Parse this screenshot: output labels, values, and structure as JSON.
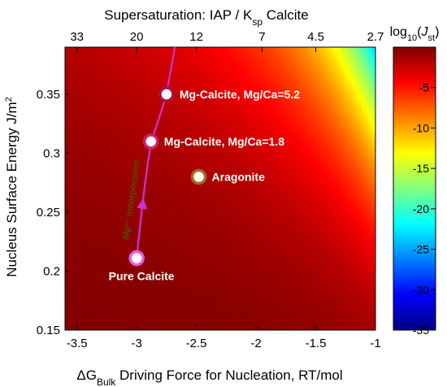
{
  "chart_data": {
    "type": "heatmap",
    "x_axis": {
      "label_main": "ΔG",
      "label_sub": "Bulk",
      "label_rest": " Driving Force for Nucleation, RT/mol",
      "range": [
        -3.6,
        -1
      ],
      "ticks": [
        -3.5,
        -3,
        -2.5,
        -2,
        -1.5,
        -1
      ],
      "tick_labels": [
        "-3.5",
        "-3",
        "-2.5",
        "-2",
        "-1.5",
        "-1"
      ]
    },
    "top_axis": {
      "label_pre": "Supersaturation: IAP / K",
      "label_sub": "sp",
      "label_post": " Calcite",
      "ticks_at_x": [
        -3.5,
        -3.0,
        -2.5,
        -1.95,
        -1.5,
        -1.0
      ],
      "tick_labels": [
        "33",
        "20",
        "12",
        "7",
        "4.5",
        "2.7"
      ]
    },
    "y_axis": {
      "label_main": "Nucleus Surface Energy J/m",
      "label_sup": "2",
      "range": [
        0.15,
        0.39
      ],
      "ticks": [
        0.15,
        0.2,
        0.25,
        0.3,
        0.35
      ],
      "tick_labels": [
        "0.15",
        "0.2",
        "0.25",
        "0.3",
        "0.35"
      ]
    },
    "colorbar": {
      "title_pre": "log",
      "title_sub": "10",
      "title_paren_open": "(",
      "title_J": "J",
      "title_J_sub": "st",
      "title_paren_close": ")",
      "range": [
        -35,
        0
      ],
      "ticks": [
        -5,
        -10,
        -15,
        -20,
        -25,
        -30,
        -35
      ],
      "tick_labels": [
        "-5",
        "-10",
        "-15",
        "-20",
        "-25",
        "-30",
        "-35"
      ],
      "colors": [
        "#000080",
        "#0000ff",
        "#0080ff",
        "#00ffff",
        "#80ff80",
        "#ffff00",
        "#ff8000",
        "#ff0000",
        "#800000"
      ]
    },
    "points": [
      {
        "name": "Pure Calcite",
        "x": -3.0,
        "y": 0.211,
        "fill": "#ffffff",
        "stroke": "#e060e0"
      },
      {
        "name": "Mg-Calcite, Mg/Ca=1.8",
        "x": -2.88,
        "y": 0.31,
        "fill": "#ffffff",
        "stroke": "#cc2266"
      },
      {
        "name": "Mg-Calcite, Mg/Ca=5.2",
        "x": -2.75,
        "y": 0.35,
        "fill": "#ffffff",
        "stroke": "#aa1144"
      },
      {
        "name": "Aragonite",
        "x": -2.48,
        "y": 0.28,
        "fill": "#ffffff",
        "stroke": "#a07020"
      }
    ],
    "curve": {
      "label": "Mg²⁺ Incorporation",
      "color": "#cc33cc",
      "points": [
        [
          -3.0,
          0.211
        ],
        [
          -2.97,
          0.24
        ],
        [
          -2.93,
          0.275
        ],
        [
          -2.88,
          0.31
        ],
        [
          -2.81,
          0.33
        ],
        [
          -2.75,
          0.35
        ],
        [
          -2.68,
          0.39
        ]
      ]
    }
  }
}
